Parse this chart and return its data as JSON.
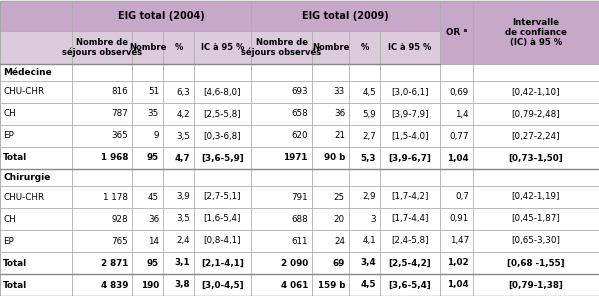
{
  "sections": [
    {
      "section_label": "Médecine",
      "rows": [
        [
          "CHU-CHR",
          "816",
          "51",
          "6,3",
          "[4,6-8,0]",
          "693",
          "33",
          "4,5",
          "[3,0-6,1]",
          "0,69",
          "[0,42-1,10]"
        ],
        [
          "CH",
          "787",
          "35",
          "4,2",
          "[2,5-5,8]",
          "658",
          "36",
          "5,9",
          "[3,9-7,9]",
          "1,4",
          "[0,79-2,48]"
        ],
        [
          "EP",
          "365",
          "9",
          "3,5",
          "[0,3-6,8]",
          "620",
          "21",
          "2,7",
          "[1,5-4,0]",
          "0,77",
          "[0,27-2,24]"
        ]
      ],
      "total_row": [
        "Total",
        "1 968",
        "95",
        "4,7",
        "[3,6-5,9]",
        "1971",
        "90 b",
        "5,3",
        "[3,9-6,7]",
        "1,04",
        "[0,73-1,50]"
      ]
    },
    {
      "section_label": "Chirurgie",
      "rows": [
        [
          "CHU-CHR",
          "1 178",
          "45",
          "3,9",
          "[2,7-5,1]",
          "791",
          "25",
          "2,9",
          "[1,7-4,2]",
          "0,7",
          "[0,42-1,19]"
        ],
        [
          "CH",
          "928",
          "36",
          "3,5",
          "[1,6-5,4]",
          "688",
          "20",
          "3",
          "[1,7-4,4]",
          "0,91",
          "[0,45-1,87]"
        ],
        [
          "EP",
          "765",
          "14",
          "2,4",
          "[0,8-4,1]",
          "611",
          "24",
          "4,1",
          "[2,4-5,8]",
          "1,47",
          "[0,65-3,30]"
        ]
      ],
      "total_row": [
        "Total",
        "2 871",
        "95",
        "3,1",
        "[2,1-4,1]",
        "2 090",
        "69",
        "3,4",
        "[2,5-4,2]",
        "1,02",
        "[0,68 -1,55]"
      ]
    }
  ],
  "grand_total": [
    "Total",
    "4 839",
    "190",
    "3,8",
    "[3,0-4,5]",
    "4 061",
    "159 b",
    "4,5",
    "[3,6-5,4]",
    "1,04",
    "[0,79-1,38]"
  ],
  "col_header_dark": "#c8a8c8",
  "col_header_mid": "#dccbdc",
  "col_white": "#ffffff",
  "col_border": "#aaaaaa",
  "col_border_thick": "#888888"
}
